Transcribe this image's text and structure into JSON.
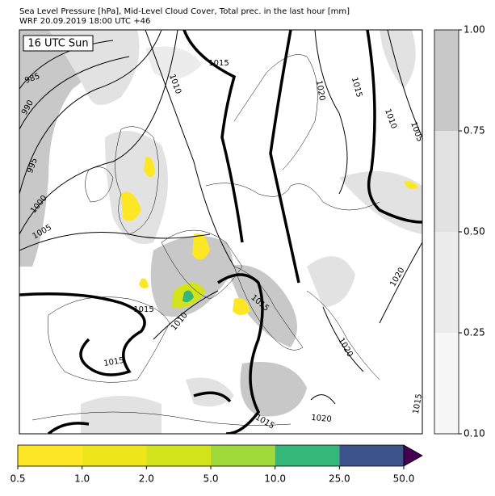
{
  "header": {
    "title": [
      "Sea Level Pressure [hPa], Mid-Level Cloud Cover, Total prec. in the last hour [mm]",
      "WRF 20.09.2019 18:00 UTC +46"
    ]
  },
  "map": {
    "time_label": "16 UTC Sun",
    "contour_labels": [
      985,
      990,
      995,
      1000,
      1005,
      1010,
      1015,
      1020,
      1015,
      1010,
      1005,
      1020,
      1015,
      1015,
      1010,
      1015,
      1020,
      1020,
      1015,
      1015
    ]
  },
  "cloud_colorbar": {
    "ticks": [
      {
        "value": 0.1,
        "label": "0.10"
      },
      {
        "value": 0.25,
        "label": "0.25"
      },
      {
        "value": 0.5,
        "label": "0.50"
      },
      {
        "value": 0.75,
        "label": "0.75"
      },
      {
        "value": 1,
        "label": "1.00"
      }
    ],
    "colors": [
      "#f7f7f7",
      "#ececec",
      "#e2e2e2",
      "#c8c8c8"
    ]
  },
  "precip_colorbar": {
    "ticks": [
      0.5,
      {
        "value": 1,
        "label": "1.0"
      },
      {
        "value": 2,
        "label": "2.0"
      },
      {
        "value": 5,
        "label": "5.0"
      },
      {
        "value": 10,
        "label": "10.0"
      },
      {
        "value": 25,
        "label": "25.0"
      },
      {
        "value": 50,
        "label": "50.0"
      }
    ],
    "colors": [
      "#fde725",
      "#eee51b",
      "#d2e21b",
      "#a0da39",
      "#35b779",
      "#3b528b"
    ],
    "extend_color": "#440154"
  }
}
